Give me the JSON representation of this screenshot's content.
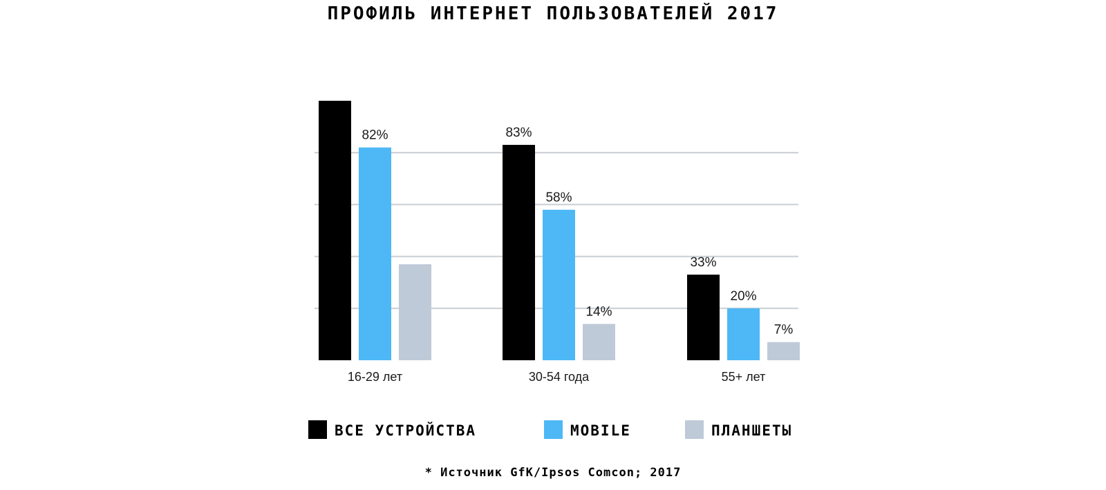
{
  "chart_data": {
    "type": "bar",
    "title": "ПРОФИЛЬ ИНТЕРНЕТ ПОЛЬЗОВАТЕЛЕЙ 2017",
    "categories": [
      "16-29 лет",
      "30-54 года",
      "55+ лет"
    ],
    "series": [
      {
        "name": "ВСЕ УСТРОЙСТВА",
        "color": "#000000",
        "values": [
          100,
          83,
          33
        ],
        "labels": [
          "",
          "83%",
          "33%"
        ]
      },
      {
        "name": "MOBILE",
        "color": "#4db8f5",
        "values": [
          82,
          58,
          20
        ],
        "labels": [
          "82%",
          "58%",
          "20%"
        ]
      },
      {
        "name": "ПЛАНШЕТЫ",
        "color": "#bfcad8",
        "values": [
          37,
          14,
          7
        ],
        "labels": [
          "",
          "14%",
          "7%"
        ]
      }
    ],
    "ylim": [
      0,
      100
    ],
    "grid": true,
    "legend": "bottom",
    "source": "* Источник GfK/Ipsos Comcon; 2017"
  }
}
